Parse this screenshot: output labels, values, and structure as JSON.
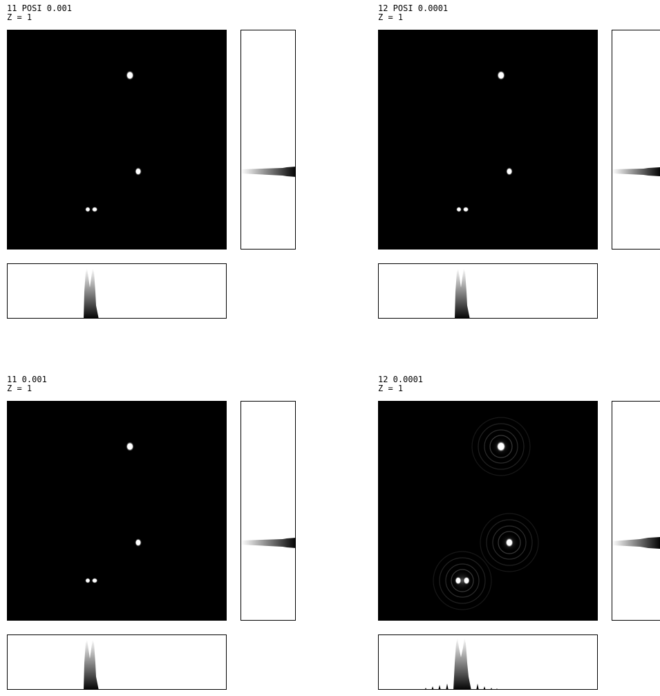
{
  "panels": [
    {
      "id": "p1",
      "title": "11 POSI 0.001",
      "subtitle": "Z = 1",
      "rings": false
    },
    {
      "id": "p2",
      "title": "12 POSI 0.0001",
      "subtitle": "Z = 1",
      "rings": false
    },
    {
      "id": "p3",
      "title": "11 0.001",
      "subtitle": "Z = 1",
      "rings": false
    },
    {
      "id": "p4",
      "title": "12 0.0001",
      "subtitle": "Z = 1",
      "rings": true
    }
  ],
  "colors": {
    "background": "#ffffff",
    "image_bg": "#000000",
    "spot": "#ffffff",
    "frame": "#000000"
  }
}
